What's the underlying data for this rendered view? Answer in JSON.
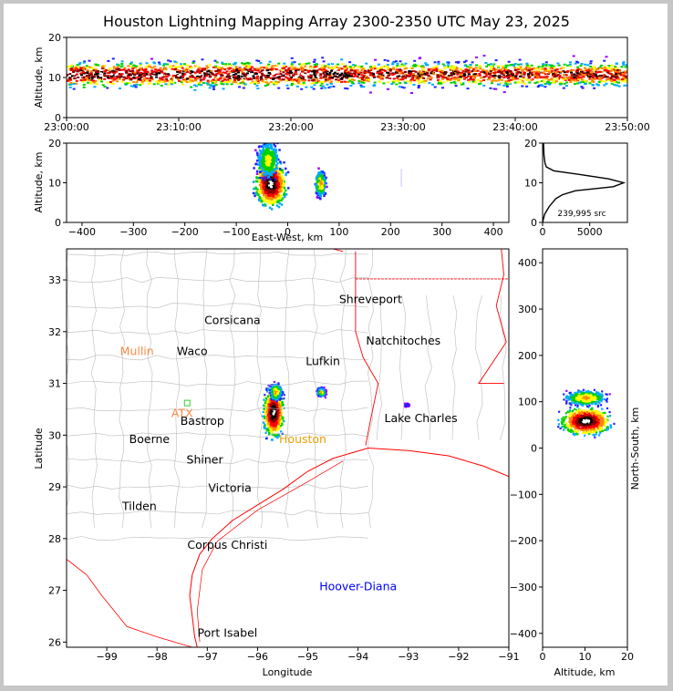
{
  "title": "Houston Lightning Mapping Array 2300-2350 UTC May 23, 2025",
  "colors": {
    "scale": [
      "#9900ff",
      "#2222ff",
      "#00aaff",
      "#00d000",
      "#ffff00",
      "#ff8800",
      "#ff0000",
      "#880000",
      "#000000",
      "#ffffff"
    ],
    "state_border": "#ff0000",
    "county_lines": "#bbbbbb",
    "coast": "#ff0000"
  },
  "chart_data": [
    {
      "type": "heatmap",
      "name": "altitude-time",
      "ylabel": "Altitude, km",
      "ylim": [
        0,
        20
      ],
      "yticks": [
        "0",
        "10",
        "20"
      ],
      "xticks": [
        "23:00:00",
        "23:10:00",
        "23:20:00",
        "23:30:00",
        "23:40:00",
        "23:50:00"
      ],
      "xlim_min": [
        0,
        50
      ],
      "band_km": [
        5,
        15
      ],
      "peak_km": 11
    },
    {
      "type": "heatmap",
      "name": "altitude-eastwest",
      "xlabel": "East-West, km",
      "ylabel": "Altitude, km",
      "xlim": [
        -430,
        430
      ],
      "ylim": [
        0,
        20
      ],
      "xticks": [
        "−400",
        "−300",
        "−200",
        "−100",
        "0",
        "100",
        "200",
        "300",
        "400"
      ],
      "yticks": [
        "0",
        "10",
        "20"
      ],
      "cells": [
        {
          "x": -35,
          "z": 10,
          "sx": 18,
          "sz": 3.5,
          "intensity": 1.0
        },
        {
          "x": -40,
          "z": 16,
          "sx": 14,
          "sz": 3.0,
          "intensity": 0.5
        },
        {
          "x": 62,
          "z": 10,
          "sx": 6,
          "sz": 2.0,
          "intensity": 0.6
        }
      ]
    },
    {
      "type": "line",
      "name": "altitude-histogram",
      "xlim": [
        0,
        9000
      ],
      "ylim": [
        0,
        20
      ],
      "xticks": [
        "0",
        "5000"
      ],
      "yticks": [
        "0",
        "10",
        "20"
      ],
      "annotation": "239,995 src",
      "profile": [
        {
          "alt": 0,
          "count": 0
        },
        {
          "alt": 2,
          "count": 200
        },
        {
          "alt": 4,
          "count": 700
        },
        {
          "alt": 6,
          "count": 1400
        },
        {
          "alt": 7,
          "count": 2100
        },
        {
          "alt": 8,
          "count": 3500
        },
        {
          "alt": 9,
          "count": 7500
        },
        {
          "alt": 10,
          "count": 8600
        },
        {
          "alt": 11,
          "count": 7000
        },
        {
          "alt": 12,
          "count": 4200
        },
        {
          "alt": 13,
          "count": 1200
        },
        {
          "alt": 14,
          "count": 400
        },
        {
          "alt": 15,
          "count": 250
        },
        {
          "alt": 17,
          "count": 150
        },
        {
          "alt": 20,
          "count": 100
        }
      ]
    },
    {
      "type": "scatter",
      "name": "plan-view-map",
      "xlabel": "Longitude",
      "ylabel": "Latitude",
      "xlim": [
        -99.8,
        -91
      ],
      "ylim": [
        25.9,
        33.6
      ],
      "xticks": [
        "−99",
        "−98",
        "−97",
        "−96",
        "−95",
        "−94",
        "−93",
        "−92",
        "−91"
      ],
      "yticks": [
        "26",
        "27",
        "28",
        "29",
        "30",
        "31",
        "32",
        "33"
      ],
      "cities": [
        {
          "name": "Shreveport",
          "lon": -93.75,
          "lat": 32.55,
          "color": "#000000"
        },
        {
          "name": "Corsicana",
          "lon": -96.5,
          "lat": 32.15,
          "color": "#000000"
        },
        {
          "name": "Natchitoches",
          "lon": -93.1,
          "lat": 31.75,
          "color": "#000000"
        },
        {
          "name": "Mullin",
          "lon": -98.4,
          "lat": 31.55,
          "color": "#ff8844"
        },
        {
          "name": "Waco",
          "lon": -97.3,
          "lat": 31.55,
          "color": "#000000"
        },
        {
          "name": "Lufkin",
          "lon": -94.7,
          "lat": 31.35,
          "color": "#000000"
        },
        {
          "name": "ATX",
          "lon": -97.5,
          "lat": 30.35,
          "color": "#ff8844"
        },
        {
          "name": "Bastrop",
          "lon": -97.1,
          "lat": 30.2,
          "color": "#000000"
        },
        {
          "name": "Lake Charles",
          "lon": -92.75,
          "lat": 30.25,
          "color": "#000000"
        },
        {
          "name": "Boerne",
          "lon": -98.15,
          "lat": 29.85,
          "color": "#000000"
        },
        {
          "name": "Houston",
          "lon": -95.1,
          "lat": 29.85,
          "color": "#f0a000"
        },
        {
          "name": "Shiner",
          "lon": -97.05,
          "lat": 29.45,
          "color": "#000000"
        },
        {
          "name": "Victoria",
          "lon": -96.55,
          "lat": 28.9,
          "color": "#000000"
        },
        {
          "name": "Tilden",
          "lon": -98.35,
          "lat": 28.55,
          "color": "#000000"
        },
        {
          "name": "Corpus Christi",
          "lon": -96.6,
          "lat": 27.8,
          "color": "#000000"
        },
        {
          "name": "Hoover-Diana",
          "lon": -94.0,
          "lat": 27.0,
          "color": "#0000ff"
        },
        {
          "name": "Port Isabel",
          "lon": -96.6,
          "lat": 26.1,
          "color": "#000000"
        }
      ],
      "storms": [
        {
          "lon": -95.7,
          "lat": 30.45,
          "slon": 0.12,
          "slat": 0.28,
          "intensity": 1.0
        },
        {
          "lon": -95.65,
          "lat": 30.85,
          "slon": 0.07,
          "slat": 0.1,
          "intensity": 0.6
        },
        {
          "lon": -94.75,
          "lat": 30.85,
          "slon": 0.05,
          "slat": 0.05,
          "intensity": 0.55
        },
        {
          "lon": -93.05,
          "lat": 30.6,
          "slon": 0.03,
          "slat": 0.02,
          "intensity": 0.2
        }
      ]
    },
    {
      "type": "heatmap",
      "name": "northsouth-altitude",
      "xlabel": "Altitude, km",
      "ylabel": "North-South, km",
      "xlim": [
        0,
        20
      ],
      "ylim": [
        -430,
        430
      ],
      "xticks": [
        "0",
        "10",
        "20"
      ],
      "yticks": [
        "−400",
        "−300",
        "−200",
        "−100",
        "0",
        "100",
        "200",
        "300",
        "400"
      ],
      "cells": [
        {
          "z": 10,
          "y": 60,
          "sz": 3.5,
          "sy": 18,
          "intensity": 1.0
        },
        {
          "z": 10,
          "y": 110,
          "sz": 3.0,
          "sy": 10,
          "intensity": 0.6
        }
      ]
    }
  ]
}
